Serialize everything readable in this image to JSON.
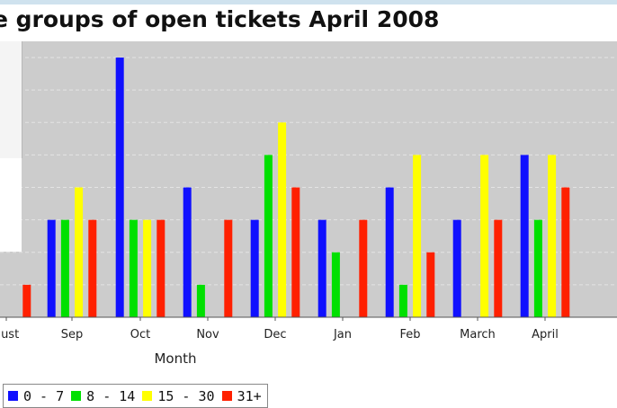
{
  "chart_data": {
    "type": "bar",
    "title": "e groups of open tickets April 2008",
    "xlabel": "Month",
    "ylabel": "",
    "categories": [
      "gust",
      "Sep",
      "Oct",
      "Nov",
      "Dec",
      "Jan",
      "Feb",
      "March",
      "April"
    ],
    "series": [
      {
        "name": "0 - 7",
        "color": "#1010ff",
        "values": [
          null,
          3,
          8,
          4,
          3,
          3,
          4,
          3,
          5
        ]
      },
      {
        "name": "8 - 14",
        "color": "#00e000",
        "values": [
          null,
          3,
          3,
          1,
          5,
          2,
          1,
          0,
          3
        ]
      },
      {
        "name": "15 - 30",
        "color": "#ffff00",
        "values": [
          null,
          4,
          3,
          0,
          6,
          0,
          5,
          5,
          5
        ]
      },
      {
        "name": "31+",
        "color": "#ff2000",
        "values": [
          1,
          3,
          3,
          3,
          4,
          3,
          2,
          3,
          4
        ]
      }
    ],
    "ylim": [
      0,
      8.5
    ],
    "grid": true,
    "legend": "bottom-left"
  },
  "colors": {
    "plot_background": "#cccccc",
    "grid": "#e4e4e4"
  }
}
